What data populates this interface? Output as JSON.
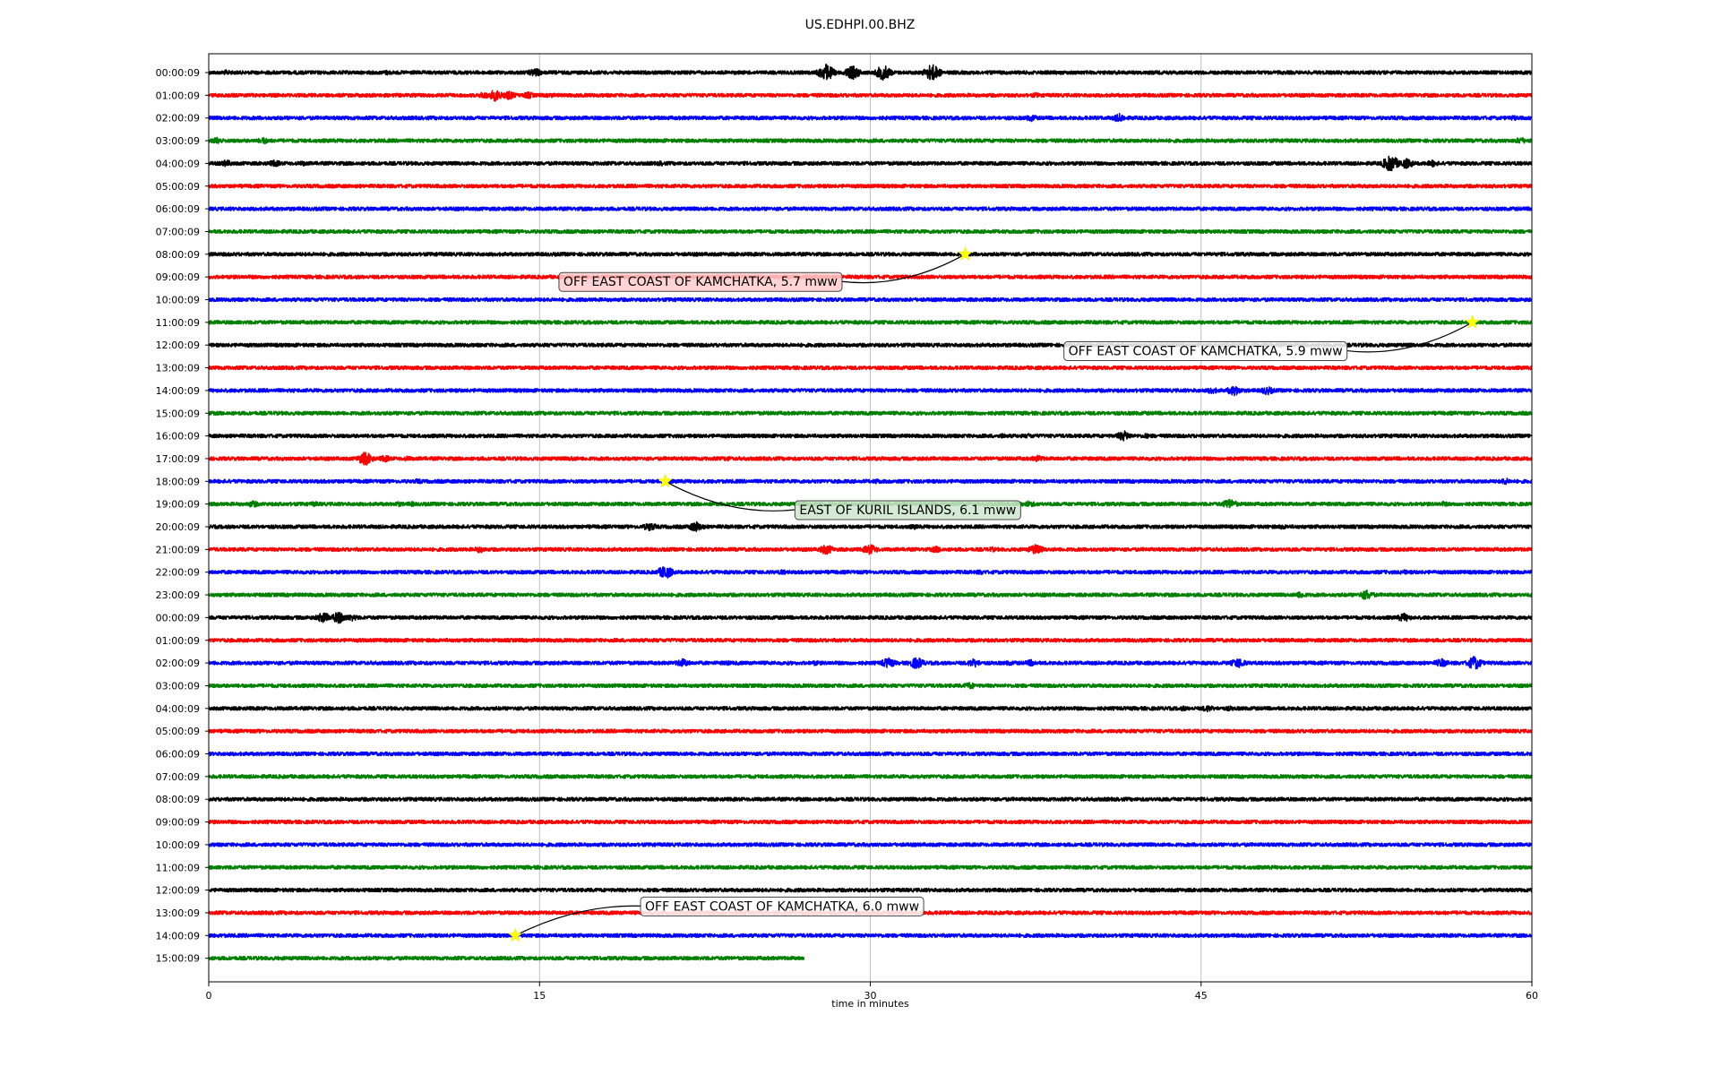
{
  "chart_data": {
    "type": "line",
    "title": "US.EDHPI.00.BHZ",
    "xlabel": "time in minutes",
    "ylabel": "",
    "xlim": [
      0,
      60
    ],
    "xticks": [
      0,
      15,
      30,
      45,
      60
    ],
    "grid": "vertical",
    "trace_colors": [
      "#000000",
      "#ff0000",
      "#0000ff",
      "#008000"
    ],
    "rows": [
      {
        "label": "00:00:09",
        "color": "#000000",
        "bursts": [
          [
            0.8,
            3
          ],
          [
            14.8,
            5
          ],
          [
            17.4,
            3
          ],
          [
            26,
            2
          ],
          [
            28,
            10
          ],
          [
            29.2,
            8
          ],
          [
            30.6,
            9
          ],
          [
            32.8,
            10
          ],
          [
            8.1,
            3
          ]
        ]
      },
      {
        "label": "01:00:09",
        "color": "#ff0000",
        "bursts": [
          [
            12.5,
            4
          ],
          [
            13,
            7
          ],
          [
            13.6,
            5
          ],
          [
            14.5,
            4
          ],
          [
            15.5,
            3
          ],
          [
            37.5,
            3
          ]
        ]
      },
      {
        "label": "02:00:09",
        "color": "#0000ff",
        "bursts": [
          [
            37.3,
            4
          ],
          [
            41.3,
            5
          ],
          [
            59.2,
            3
          ]
        ]
      },
      {
        "label": "03:00:09",
        "color": "#008000",
        "bursts": [
          [
            0.4,
            4
          ],
          [
            2.5,
            4
          ],
          [
            51,
            2
          ],
          [
            55,
            2
          ],
          [
            59.5,
            4
          ]
        ]
      },
      {
        "label": "04:00:09",
        "color": "#000000",
        "bursts": [
          [
            0.8,
            4
          ],
          [
            3,
            4
          ],
          [
            4.3,
            3
          ],
          [
            20.5,
            3
          ],
          [
            53.6,
            10
          ],
          [
            54.3,
            6
          ],
          [
            55.5,
            4
          ]
        ]
      },
      {
        "label": "05:00:09",
        "color": "#ff0000",
        "bursts": [
          [
            1.1,
            2
          ]
        ]
      },
      {
        "label": "06:00:09",
        "color": "#0000ff",
        "bursts": []
      },
      {
        "label": "07:00:09",
        "color": "#008000",
        "bursts": []
      },
      {
        "label": "08:00:09",
        "color": "#000000",
        "bursts": []
      },
      {
        "label": "09:00:09",
        "color": "#ff0000",
        "bursts": []
      },
      {
        "label": "10:00:09",
        "color": "#0000ff",
        "bursts": []
      },
      {
        "label": "11:00:09",
        "color": "#008000",
        "bursts": []
      },
      {
        "label": "12:00:09",
        "color": "#000000",
        "bursts": [
          [
            7,
            2
          ]
        ]
      },
      {
        "label": "13:00:09",
        "color": "#ff0000",
        "bursts": []
      },
      {
        "label": "14:00:09",
        "color": "#0000ff",
        "bursts": [
          [
            45.5,
            4
          ],
          [
            46.5,
            6
          ],
          [
            48,
            5
          ],
          [
            52,
            2
          ]
        ]
      },
      {
        "label": "15:00:09",
        "color": "#008000",
        "bursts": [
          [
            10,
            2
          ]
        ]
      },
      {
        "label": "16:00:09",
        "color": "#000000",
        "bursts": [
          [
            36,
            3
          ],
          [
            37.2,
            3
          ],
          [
            41.5,
            6
          ],
          [
            42.5,
            3
          ],
          [
            30.2,
            2
          ]
        ]
      },
      {
        "label": "17:00:09",
        "color": "#ff0000",
        "bursts": [
          [
            7.1,
            8
          ],
          [
            8,
            4
          ],
          [
            9,
            3
          ],
          [
            5.5,
            2
          ],
          [
            16.5,
            3
          ],
          [
            23.5,
            3
          ],
          [
            37.6,
            4
          ]
        ]
      },
      {
        "label": "18:00:09",
        "color": "#0000ff",
        "bursts": [
          [
            9.5,
            3
          ],
          [
            13.5,
            2
          ],
          [
            30.3,
            3
          ],
          [
            36,
            2
          ],
          [
            45.8,
            2
          ],
          [
            58.8,
            4
          ]
        ]
      },
      {
        "label": "19:00:09",
        "color": "#008000",
        "bursts": [
          [
            2,
            4
          ],
          [
            4.8,
            3
          ],
          [
            8.6,
            3
          ],
          [
            9.2,
            3
          ],
          [
            37.2,
            4
          ],
          [
            46.3,
            6
          ],
          [
            48,
            2
          ],
          [
            56,
            3
          ]
        ]
      },
      {
        "label": "20:00:09",
        "color": "#000000",
        "bursts": [
          [
            20,
            5
          ],
          [
            22.1,
            6
          ],
          [
            32,
            3
          ],
          [
            34,
            2
          ],
          [
            48.7,
            3
          ]
        ]
      },
      {
        "label": "21:00:09",
        "color": "#ff0000",
        "bursts": [
          [
            12.3,
            4
          ],
          [
            28,
            6
          ],
          [
            30,
            6
          ],
          [
            33,
            4
          ],
          [
            37.5,
            6
          ],
          [
            35.5,
            3
          ]
        ]
      },
      {
        "label": "22:00:09",
        "color": "#0000ff",
        "bursts": [
          [
            20.7,
            8
          ],
          [
            26,
            3
          ],
          [
            35,
            3
          ],
          [
            54.2,
            3
          ]
        ]
      },
      {
        "label": "23:00:09",
        "color": "#008000",
        "bursts": [
          [
            49.5,
            4
          ],
          [
            52.5,
            6
          ],
          [
            58.5,
            2
          ]
        ]
      },
      {
        "label": "00:00:09",
        "color": "#000000",
        "bursts": [
          [
            5.2,
            6
          ],
          [
            5.9,
            7
          ],
          [
            6.5,
            4
          ],
          [
            30.1,
            2
          ],
          [
            54.2,
            5
          ]
        ]
      },
      {
        "label": "01:00:09",
        "color": "#ff0000",
        "bursts": []
      },
      {
        "label": "02:00:09",
        "color": "#0000ff",
        "bursts": [
          [
            21.5,
            5
          ],
          [
            23.5,
            3
          ],
          [
            27.5,
            3
          ],
          [
            30.8,
            6
          ],
          [
            32.1,
            7
          ],
          [
            34.7,
            5
          ],
          [
            36.3,
            3
          ],
          [
            37.3,
            4
          ],
          [
            46.7,
            6
          ],
          [
            55.9,
            5
          ],
          [
            57.4,
            8
          ]
        ]
      },
      {
        "label": "03:00:09",
        "color": "#008000",
        "bursts": [
          [
            34.5,
            4
          ],
          [
            46.3,
            2
          ]
        ]
      },
      {
        "label": "04:00:09",
        "color": "#000000",
        "bursts": [
          [
            0.8,
            2
          ],
          [
            44.2,
            3
          ],
          [
            45.3,
            4
          ],
          [
            46.3,
            3
          ]
        ]
      },
      {
        "label": "05:00:09",
        "color": "#ff0000",
        "bursts": [
          [
            12.3,
            2
          ]
        ]
      },
      {
        "label": "06:00:09",
        "color": "#0000ff",
        "bursts": []
      },
      {
        "label": "07:00:09",
        "color": "#008000",
        "bursts": [
          [
            29.3,
            2
          ]
        ]
      },
      {
        "label": "08:00:09",
        "color": "#000000",
        "bursts": []
      },
      {
        "label": "09:00:09",
        "color": "#ff0000",
        "bursts": []
      },
      {
        "label": "10:00:09",
        "color": "#0000ff",
        "bursts": []
      },
      {
        "label": "11:00:09",
        "color": "#008000",
        "bursts": [
          [
            40.7,
            2
          ]
        ]
      },
      {
        "label": "12:00:09",
        "color": "#000000",
        "bursts": []
      },
      {
        "label": "13:00:09",
        "color": "#ff0000",
        "bursts": []
      },
      {
        "label": "14:00:09",
        "color": "#0000ff",
        "bursts": [
          [
            24,
            2
          ]
        ]
      },
      {
        "label": "15:00:09",
        "color": "#008000",
        "bursts": [],
        "end_minute": 27
      }
    ],
    "annotations": [
      {
        "text": "OFF EAST COAST OF KAMCHATKA, 5.7 mww",
        "row": 8,
        "minute": 34.3,
        "label_minute": 22.3,
        "label_row": 9.2,
        "label_bg": "#ffcccc"
      },
      {
        "text": "OFF EAST COAST OF KAMCHATKA, 5.9 mww",
        "row": 11,
        "minute": 57.3,
        "label_minute": 45.2,
        "label_row": 12.25,
        "label_bg": "#ffffff"
      },
      {
        "text": "EAST OF KURIL ISLANDS, 6.1 mww",
        "row": 18,
        "minute": 20.7,
        "label_minute": 31.7,
        "label_row": 19.25,
        "label_bg": "#cce6cc"
      },
      {
        "text": "OFF EAST COAST OF KAMCHATKA, 6.0 mww",
        "row": 38,
        "minute": 13.9,
        "label_minute": 26,
        "label_row": 36.7,
        "label_bg": "#ffffff"
      }
    ]
  }
}
